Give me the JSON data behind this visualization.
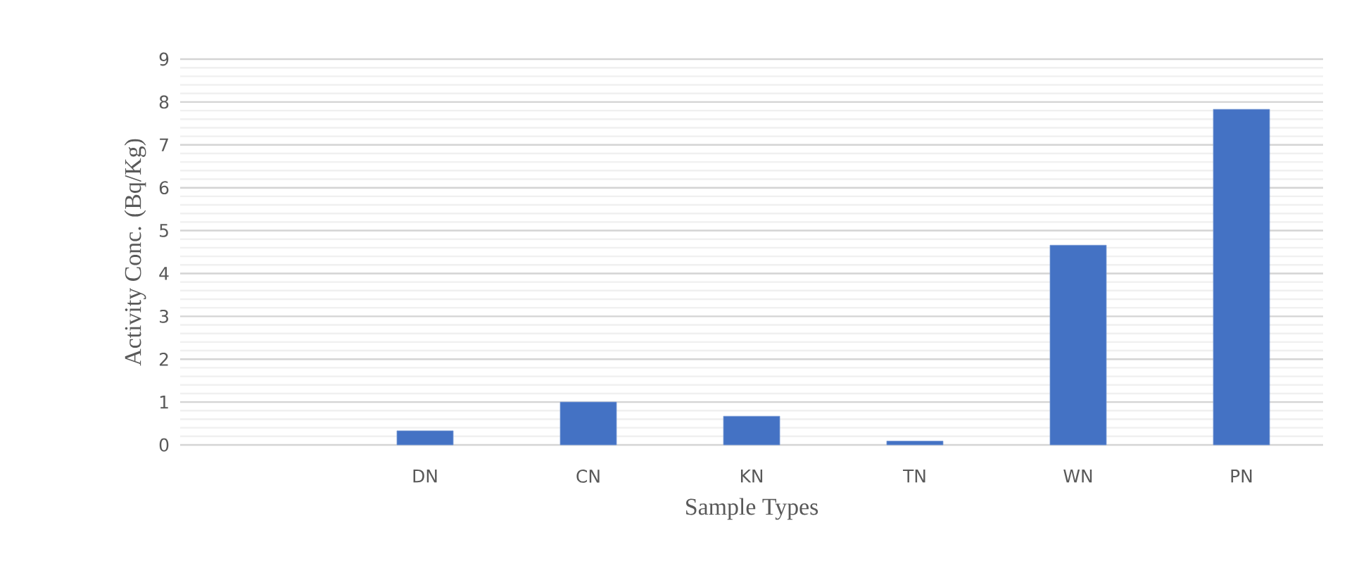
{
  "chart_data": {
    "type": "bar",
    "xlabel": "Sample Types",
    "ylabel": "Activity Conc. (Bq/Kg)",
    "categories": [
      null,
      "DN",
      "CN",
      "KN",
      "TN",
      "WN",
      "PN"
    ],
    "values": [
      null,
      0.33,
      1.0,
      0.67,
      0.09,
      4.66,
      7.83
    ],
    "color": "#4472c4",
    "ylim": [
      0,
      9
    ],
    "yticks": [
      0,
      1,
      2,
      3,
      4,
      5,
      6,
      7,
      8,
      9
    ],
    "grid": "y"
  }
}
